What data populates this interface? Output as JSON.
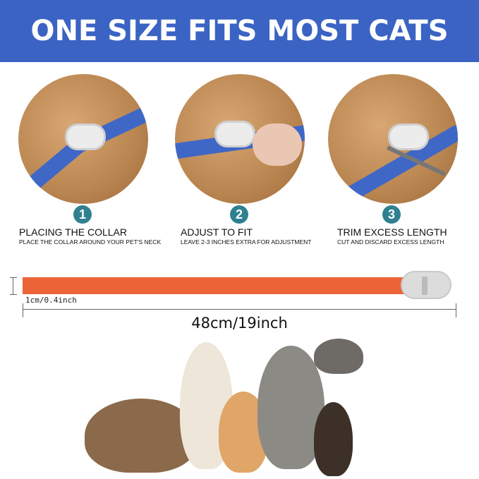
{
  "banner": {
    "title": "ONE SIZE FITS MOST CATS"
  },
  "steps": [
    {
      "number": "1",
      "title": "PLACING THE COLLAR",
      "subtitle": "PLACE THE COLLAR AROUND YOUR PET'S NECK"
    },
    {
      "number": "2",
      "title": "ADJUST TO FIT",
      "subtitle": "LEAVE 2-3 INCHES EXTRA FOR ADJUSTMENT"
    },
    {
      "number": "3",
      "title": "TRIM EXCESS LENGTH",
      "subtitle": "CUT AND DISCARD EXCESS LENGTH"
    }
  ],
  "collar": {
    "width_label": "1cm/0.4inch",
    "length_label": "48cm/19inch",
    "color": "#ec6337"
  },
  "colors": {
    "banner": "#3b63c3",
    "badge": "#2f8190",
    "strap": "#3f68c6"
  }
}
